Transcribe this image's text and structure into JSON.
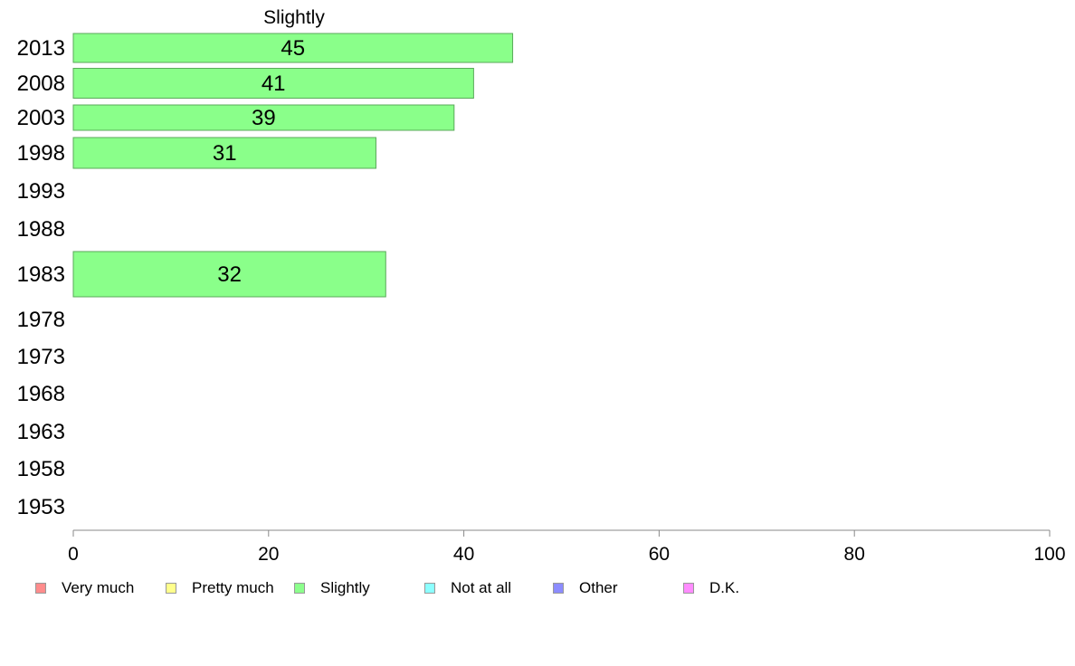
{
  "chart_data": {
    "type": "bar",
    "orientation": "horizontal",
    "title": "Slightly",
    "categories": [
      "2013",
      "2008",
      "2003",
      "1998",
      "1993",
      "1988",
      "1983",
      "1978",
      "1973",
      "1968",
      "1963",
      "1958",
      "1953"
    ],
    "series": [
      {
        "name": "Slightly",
        "values": [
          45,
          41,
          39,
          31,
          null,
          null,
          32,
          null,
          null,
          null,
          null,
          null,
          null
        ]
      }
    ],
    "x_ticks": [
      "0",
      "20",
      "40",
      "60",
      "80",
      "100"
    ],
    "xlim": [
      0,
      100
    ],
    "grid": false,
    "legend_position": "bottom",
    "legend": [
      {
        "label": "Very much",
        "color": "#ff8c8c"
      },
      {
        "label": "Pretty much",
        "color": "#ffff8c"
      },
      {
        "label": "Slightly",
        "color": "#8cff8c"
      },
      {
        "label": "Not at all",
        "color": "#8cffff"
      },
      {
        "label": "Other",
        "color": "#8c8cff"
      },
      {
        "label": "D.K.",
        "color": "#ff8cff"
      }
    ],
    "bar_color": "#8aff8a",
    "bar_border_color": "#5aaa5a",
    "axis_color": "#888888"
  }
}
